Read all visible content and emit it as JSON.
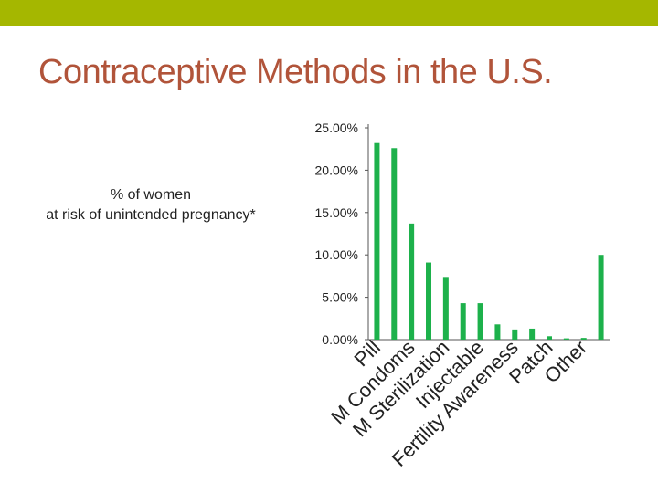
{
  "slide": {
    "title": "Contraceptive Methods in the U.S.",
    "colors": {
      "topbar": "#a5b700",
      "title": "#b1543a",
      "bar": "#1db14b"
    }
  },
  "chart_data": {
    "type": "bar",
    "ylabel_lines": [
      "% of women",
      "at risk of unintended pregnancy*"
    ],
    "ylim": [
      0,
      25
    ],
    "yticks": [
      0,
      5,
      10,
      15,
      20,
      25
    ],
    "ytick_labels": [
      "0.00%",
      "5.00%",
      "10.00%",
      "15.00%",
      "20.00%",
      "25.00%"
    ],
    "categories": [
      "Pill",
      "",
      "M Condoms",
      "",
      "M Sterilization",
      "",
      "Injectable",
      "",
      "Fertility Awareness",
      "",
      "Patch",
      "",
      "Other",
      ""
    ],
    "values": [
      23.2,
      22.6,
      13.7,
      9.1,
      7.4,
      4.3,
      4.3,
      1.8,
      1.2,
      1.3,
      0.4,
      0.15,
      0.2,
      10.0
    ],
    "grid": false,
    "legend": "none"
  }
}
